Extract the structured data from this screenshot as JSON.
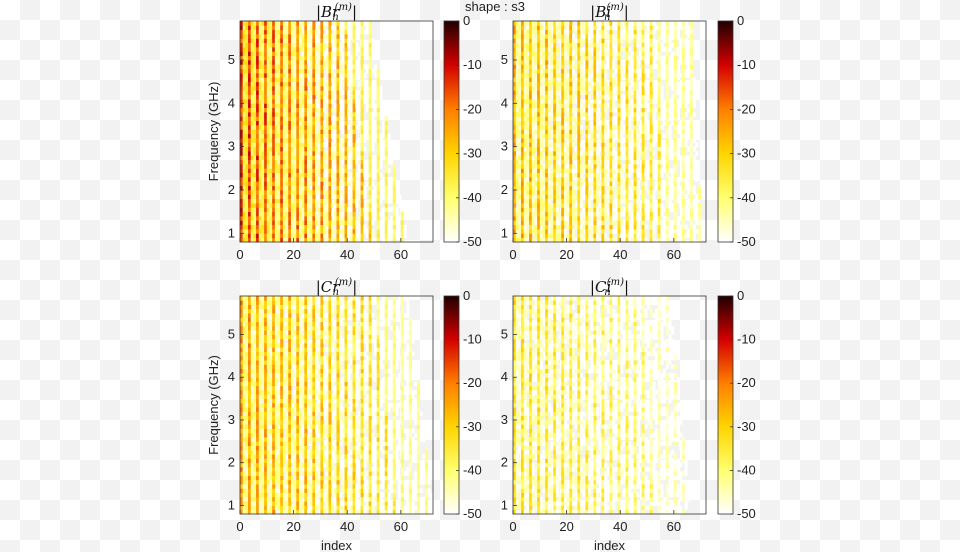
{
  "figure_title": "shape : s3",
  "chart_data": [
    {
      "type": "heatmap",
      "id": "Br",
      "title_parts": [
        "|Br",
        "n",
        "(m)",
        "|"
      ],
      "xlabel": "",
      "ylabel": "Frequency (GHz)",
      "xlim": [
        0,
        72
      ],
      "ylim": [
        0.8,
        5.9
      ],
      "xticks": [
        0,
        20,
        40,
        60
      ],
      "yticks": [
        1,
        2,
        3,
        4,
        5
      ],
      "colorbar": {
        "ticks": [
          0,
          -10,
          -20,
          -30,
          -40,
          -50
        ],
        "range": [
          -50,
          0
        ],
        "colormap": "hot"
      },
      "pattern": {
        "column_period": 2.5,
        "max_index_low": 62,
        "max_index_high": 48,
        "strength": 0.85,
        "color_bias": 0.9
      }
    },
    {
      "type": "heatmap",
      "id": "Bi",
      "title_parts": [
        "|Bi",
        "n",
        "(m)",
        "|"
      ],
      "xlabel": "",
      "ylabel": "",
      "xlim": [
        0,
        72
      ],
      "ylim": [
        0.8,
        5.9
      ],
      "xticks": [
        0,
        20,
        40,
        60
      ],
      "yticks": [
        1,
        2,
        3,
        4,
        5
      ],
      "colorbar": {
        "ticks": [
          0,
          -10,
          -20,
          -30,
          -40,
          -50
        ],
        "range": [
          -50,
          0
        ],
        "colormap": "hot"
      },
      "pattern": {
        "column_period": 3.0,
        "max_index_low": 70,
        "max_index_high": 66,
        "strength": 0.6,
        "color_bias": 0.55
      }
    },
    {
      "type": "heatmap",
      "id": "Cr",
      "title_parts": [
        "|Cr",
        "n",
        "(m)",
        "|"
      ],
      "xlabel": "index",
      "ylabel": "Frequency (GHz)",
      "xlim": [
        0,
        72
      ],
      "ylim": [
        0.8,
        5.9
      ],
      "xticks": [
        0,
        20,
        40,
        60
      ],
      "yticks": [
        1,
        2,
        3,
        4,
        5
      ],
      "colorbar": {
        "ticks": [
          0,
          -10,
          -20,
          -30,
          -40,
          -50
        ],
        "range": [
          -50,
          0
        ],
        "colormap": "hot"
      },
      "pattern": {
        "column_period": 2.7,
        "max_index_low": 72,
        "max_index_high": 62,
        "strength": 0.65,
        "color_bias": 0.6
      }
    },
    {
      "type": "heatmap",
      "id": "Ci",
      "title_parts": [
        "|Ci",
        "n",
        "(m)",
        "|"
      ],
      "xlabel": "index",
      "ylabel": "",
      "xlim": [
        0,
        72
      ],
      "ylim": [
        0.8,
        5.9
      ],
      "xticks": [
        0,
        20,
        40,
        60
      ],
      "yticks": [
        1,
        2,
        3,
        4,
        5
      ],
      "colorbar": {
        "ticks": [
          0,
          -10,
          -20,
          -30,
          -40,
          -50
        ],
        "range": [
          -50,
          0
        ],
        "colormap": "hot"
      },
      "pattern": {
        "column_period": 2.6,
        "max_index_low": 66,
        "max_index_high": 58,
        "strength": 0.45,
        "color_bias": 0.4
      }
    }
  ]
}
